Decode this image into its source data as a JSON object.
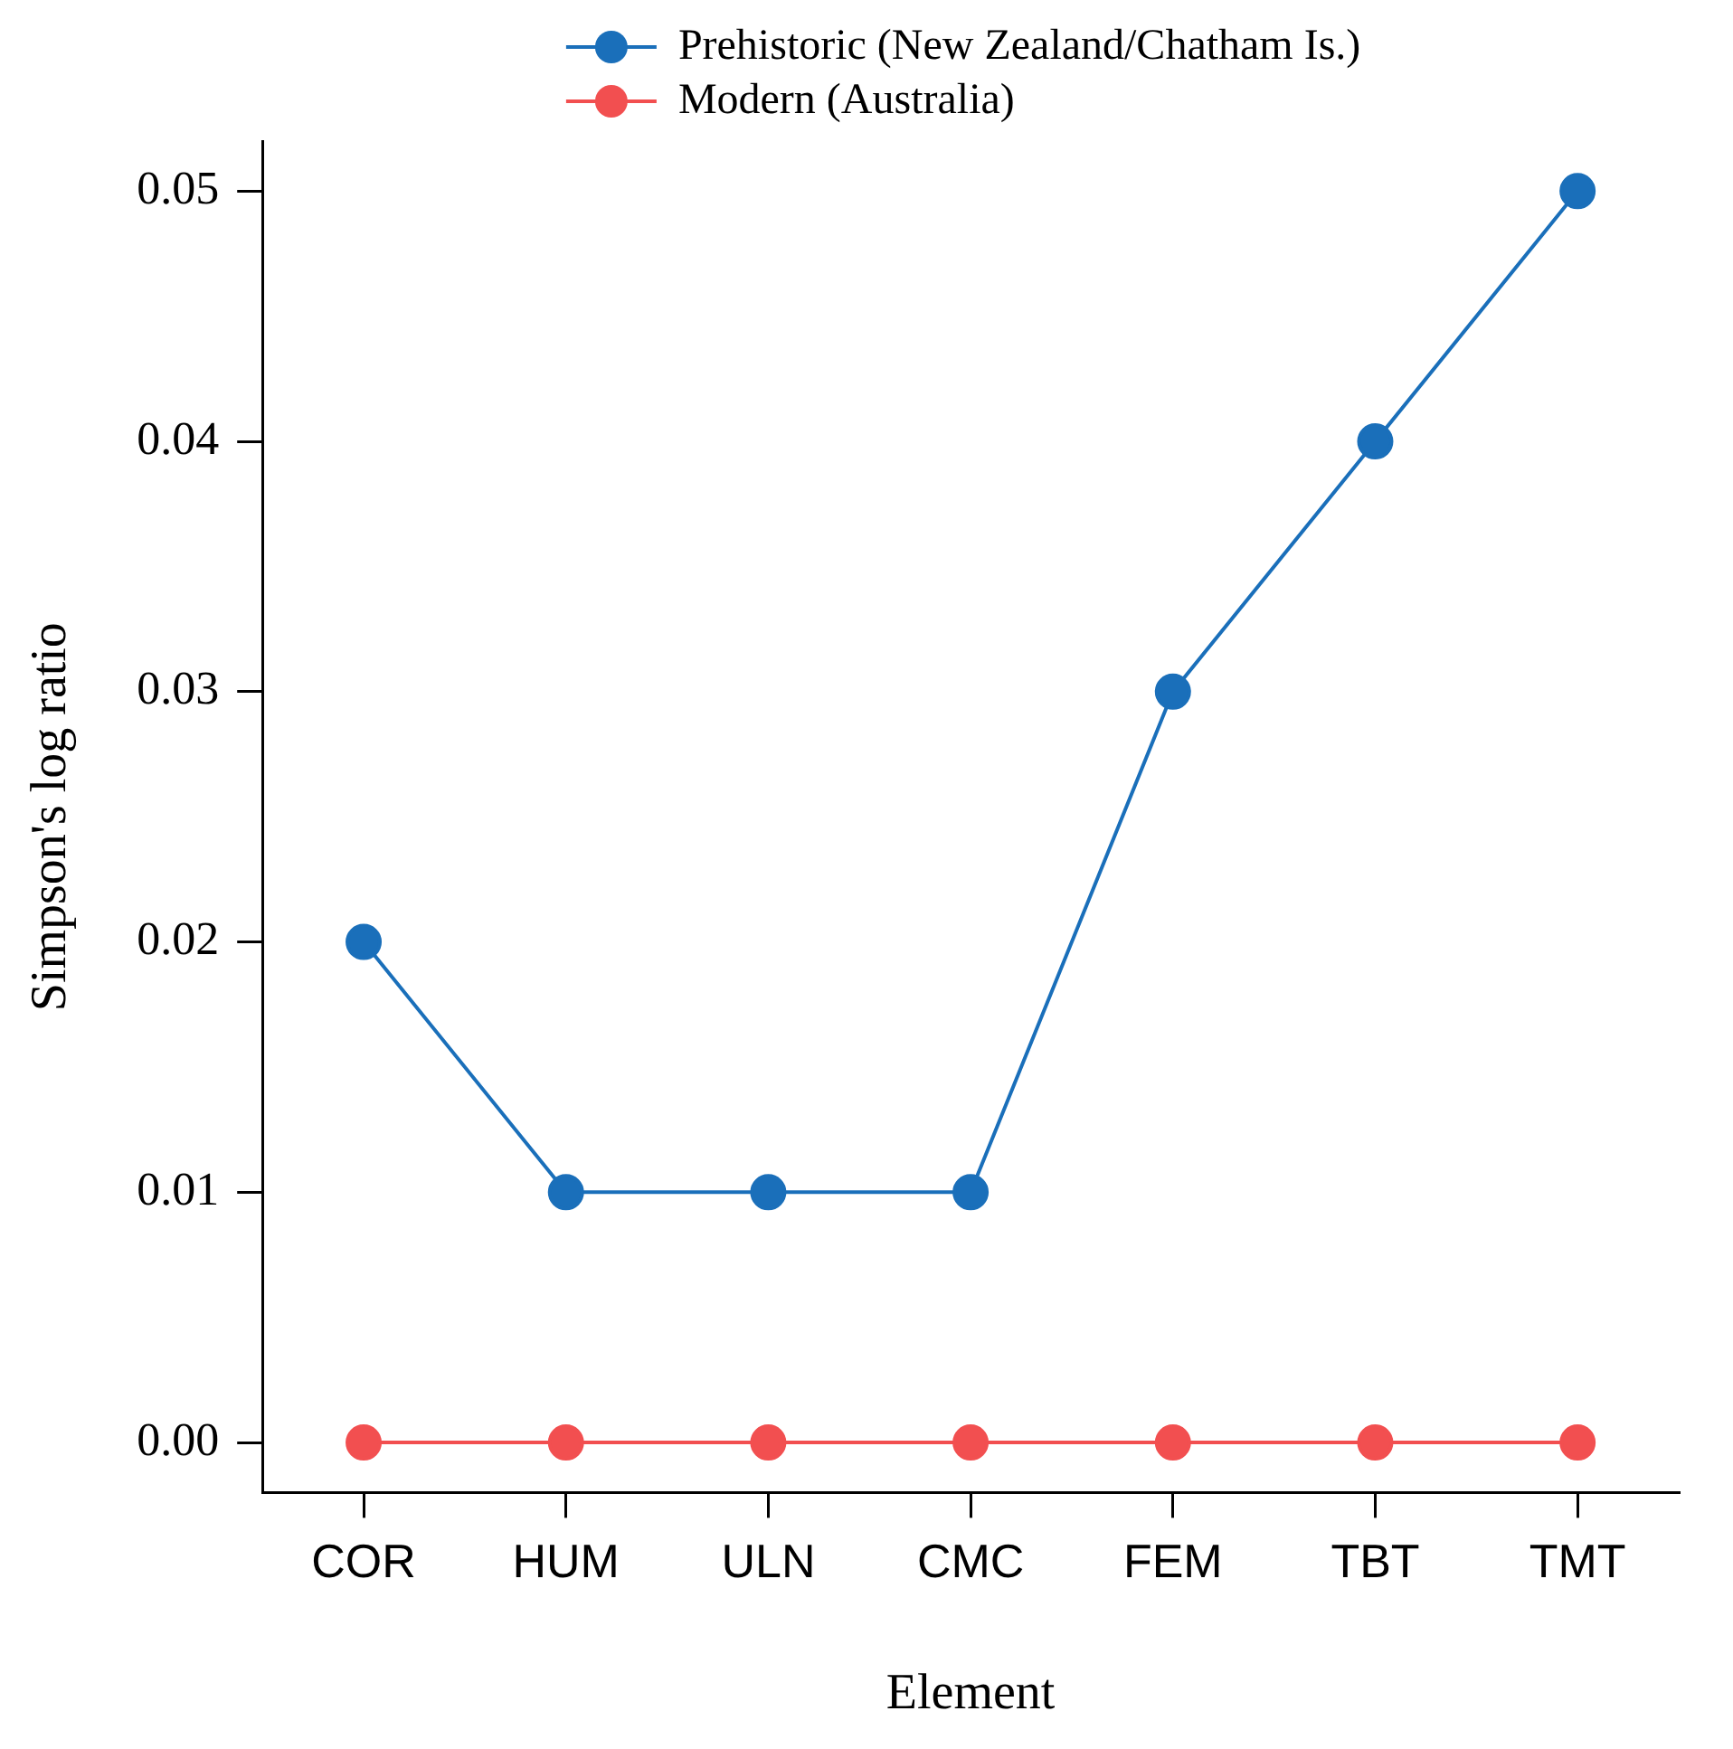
{
  "chart_data": {
    "type": "line",
    "xlabel": "Element",
    "ylabel": "Simpson's log ratio",
    "categories": [
      "COR",
      "HUM",
      "ULN",
      "CMC",
      "FEM",
      "TBT",
      "TMT"
    ],
    "series": [
      {
        "name": "Prehistoric (New Zealand/Chatham Is.)",
        "color": "#1a6fba",
        "values": [
          0.02,
          0.01,
          0.01,
          0.01,
          0.03,
          0.04,
          0.05
        ]
      },
      {
        "name": "Modern (Australia)",
        "color": "#f24f50",
        "values": [
          0,
          0,
          0,
          0,
          0,
          0,
          0
        ]
      }
    ],
    "ylim": [
      -0.002,
      0.052
    ],
    "yticks": [
      {
        "value": 0,
        "label": "0.00"
      },
      0.01,
      0.02,
      0.03,
      0.04,
      0.05
    ],
    "legend": "top",
    "grid": false,
    "marker": "circle",
    "line_style": "solid"
  }
}
